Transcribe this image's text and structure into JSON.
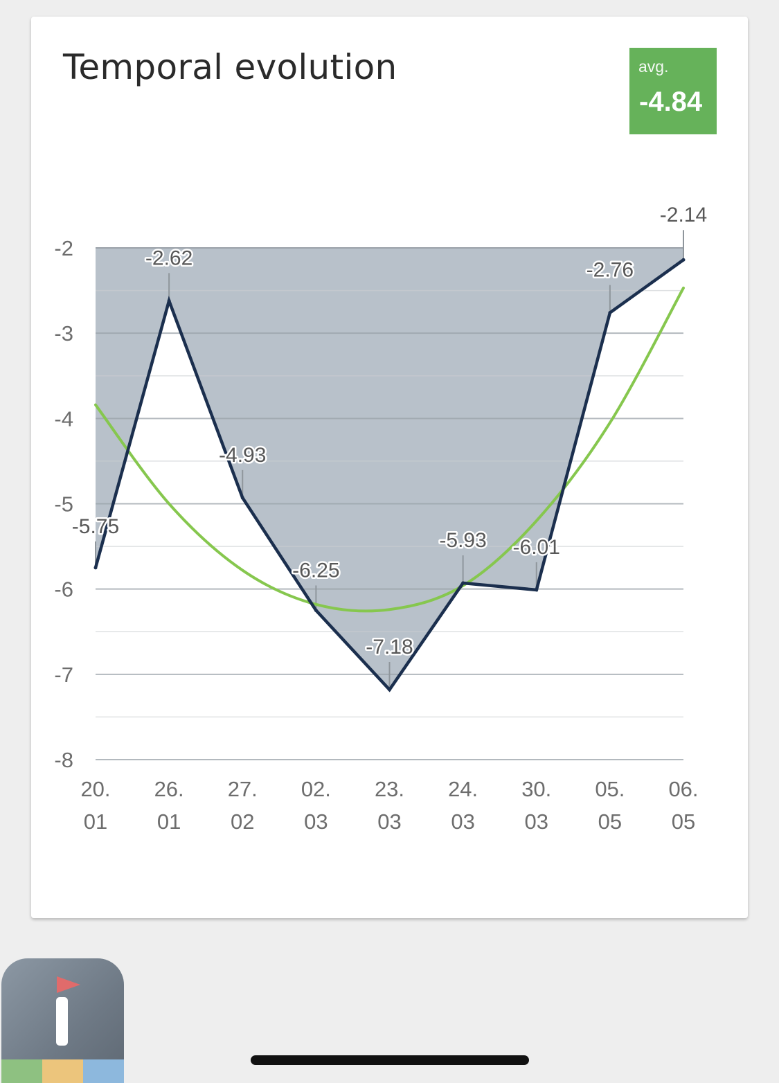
{
  "card": {
    "title": "Temporal evolution"
  },
  "avg_badge": {
    "label": "avg.",
    "value": "-4.84",
    "color": "#66b25a"
  },
  "chart_data": {
    "type": "line",
    "title": "Temporal evolution",
    "xlabel": "",
    "ylabel": "",
    "categories": [
      [
        "20.",
        "01"
      ],
      [
        "26.",
        "01"
      ],
      [
        "27.",
        "02"
      ],
      [
        "02.",
        "03"
      ],
      [
        "23.",
        "03"
      ],
      [
        "24.",
        "03"
      ],
      [
        "30.",
        "03"
      ],
      [
        "05.",
        "05"
      ],
      [
        "06.",
        "05"
      ]
    ],
    "series": [
      {
        "values": [
          -5.75,
          -2.62,
          -4.93,
          -6.25,
          -7.18,
          -5.93,
          -6.01,
          -2.76,
          -2.14
        ],
        "labels": [
          "-5.75",
          "-2.62",
          "-4.93",
          "-6.25",
          "-7.18",
          "-5.93",
          "-6.01",
          "-2.76",
          "-2.14"
        ],
        "color": "#1b2f4e",
        "area_fill": "#b8c1ca"
      },
      {
        "values": [
          -3.84,
          -5.0,
          -5.78,
          -6.18,
          -6.24,
          -5.96,
          -5.2,
          -4.05,
          -2.47
        ],
        "color": "#86c74e"
      }
    ],
    "yticks": [
      "-2",
      "-3",
      "-4",
      "-5",
      "-6",
      "-7",
      "-8"
    ],
    "ylim": [
      -8,
      -2
    ],
    "grid": true,
    "legend": "none"
  },
  "app_icon": {
    "name": "app-icon",
    "stripe_colors": [
      "#8ec181",
      "#ecc57c",
      "#8db8dd"
    ]
  }
}
